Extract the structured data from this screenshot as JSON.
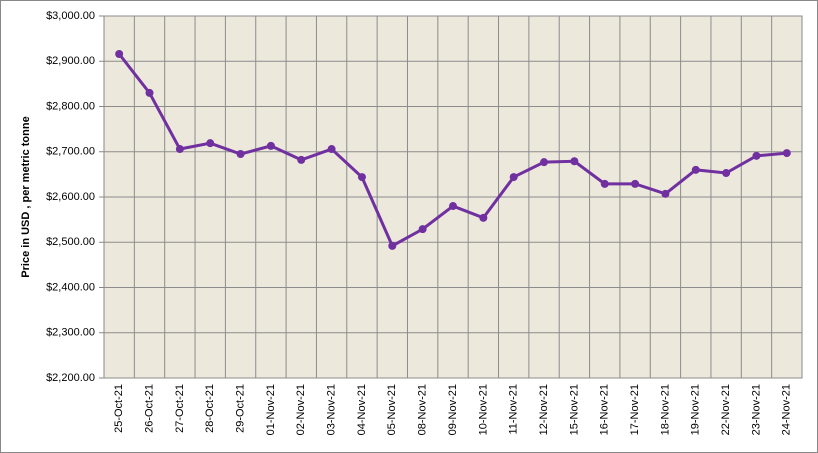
{
  "chart_data": {
    "type": "line",
    "y_label": "Price in USD , per metric tonne",
    "categories": [
      "25-Oct-21",
      "26-Oct-21",
      "27-Oct-21",
      "28-Oct-21",
      "29-Oct-21",
      "01-Nov-21",
      "02-Nov-21",
      "03-Nov-21",
      "04-Nov-21",
      "05-Nov-21",
      "08-Nov-21",
      "09-Nov-21",
      "10-Nov-21",
      "11-Nov-21",
      "12-Nov-21",
      "15-Nov-21",
      "16-Nov-21",
      "17-Nov-21",
      "18-Nov-21",
      "19-Nov-21",
      "22-Nov-21",
      "23-Nov-21",
      "24-Nov-21"
    ],
    "values": [
      2916,
      2830,
      2706,
      2719,
      2695,
      2713,
      2682,
      2706,
      2644,
      2492,
      2529,
      2580,
      2554,
      2644,
      2677,
      2679,
      2629,
      2629,
      2607,
      2660,
      2653,
      2691,
      2697
    ],
    "color": "#7030a0",
    "ylim": [
      2200,
      3000
    ],
    "yticks": [
      {
        "value": 2200,
        "label": "$2,200.00"
      },
      {
        "value": 2300,
        "label": "$2,300.00"
      },
      {
        "value": 2400,
        "label": "$2,400.00"
      },
      {
        "value": 2500,
        "label": "$2,500.00"
      },
      {
        "value": 2600,
        "label": "$2,600.00"
      },
      {
        "value": 2700,
        "label": "$2,700.00"
      },
      {
        "value": 2800,
        "label": "$2,800.00"
      },
      {
        "value": 2900,
        "label": "$2,900.00"
      },
      {
        "value": 3000,
        "label": "$3,000.00"
      }
    ],
    "grid": true
  }
}
